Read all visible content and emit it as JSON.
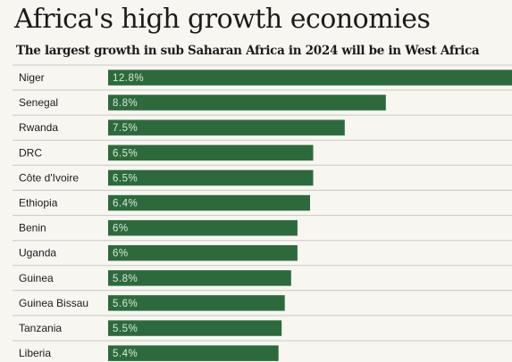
{
  "colors": {
    "bar": "#2c6a3c",
    "background": "#f7f6f1",
    "separator": "#c9c9c2"
  },
  "chart_data": {
    "type": "bar",
    "orientation": "horizontal",
    "title": "Africa's high growth economies",
    "subtitle": "The largest growth in sub Saharan Africa in 2024 will be in West Africa",
    "categories": [
      "Niger",
      "Senegal",
      "Rwanda",
      "DRC",
      "Côte d'Ivoire",
      "Ethiopia",
      "Benin",
      "Uganda",
      "Guinea",
      "Guinea Bissau",
      "Tanzania",
      "Liberia"
    ],
    "values": [
      12.8,
      8.8,
      7.5,
      6.5,
      6.5,
      6.4,
      6,
      6,
      5.8,
      5.6,
      5.5,
      5.4
    ],
    "value_labels": [
      "12.8%",
      "8.8%",
      "7.5%",
      "6.5%",
      "6.5%",
      "6.4%",
      "6%",
      "6%",
      "5.8%",
      "5.6%",
      "5.5%",
      "5.4%"
    ],
    "xlim": [
      0,
      12.8
    ],
    "grid": false,
    "legend": "none"
  }
}
